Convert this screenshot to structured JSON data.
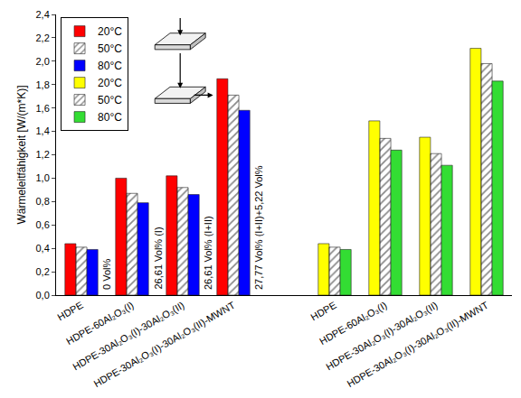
{
  "chart_data": {
    "type": "bar",
    "ylabel": "Wärmeleitfähigkeit [W/(m*K)]",
    "categories": [
      "HDPE",
      "HDPE-60Al₂O₃(I)",
      "HDPE-30Al₂O₃(I)-30Al₂O₃(II)",
      "HDPE-30Al₂O₃(I)-30Al₂O₃(II)-MWNT",
      null,
      "HDPE",
      "HDPE-60Al₂O₃(I)",
      "HDPE-30Al₂O₃(I)-30Al₂O₃(II)",
      "HDPE-30Al₂O₃(I)-30Al₂O₃(II)-MWNT"
    ],
    "series": [
      {
        "name": "20°C",
        "color": "#ff0000",
        "values": [
          0.44,
          1.0,
          1.02,
          1.85,
          null,
          null,
          null,
          null,
          null
        ]
      },
      {
        "name": "50°C",
        "color": "#e8102a",
        "marker": "hatched",
        "values": [
          0.41,
          0.87,
          0.92,
          1.71,
          null,
          null,
          null,
          null,
          null
        ]
      },
      {
        "name": "80°C",
        "color": "#0000ff",
        "values": [
          0.39,
          0.79,
          0.86,
          1.58,
          null,
          null,
          null,
          null,
          null
        ]
      },
      {
        "name": "20°C",
        "color": "#ffff00",
        "values": [
          null,
          null,
          null,
          null,
          null,
          0.44,
          1.49,
          1.35,
          2.11
        ]
      },
      {
        "name": "50°C",
        "color": "#eef03a",
        "marker": "hatched",
        "values": [
          null,
          null,
          null,
          null,
          null,
          0.41,
          1.34,
          1.21,
          1.98
        ]
      },
      {
        "name": "80°C",
        "color": "#33dd33",
        "values": [
          null,
          null,
          null,
          null,
          null,
          0.39,
          1.24,
          1.11,
          1.83
        ]
      }
    ],
    "ylim": [
      0,
      2.4
    ],
    "yticks": [
      {
        "value": 0,
        "label": "0,0"
      },
      {
        "value": 0.2,
        "label": "0,2"
      },
      {
        "value": 0.4,
        "label": "0,4"
      },
      {
        "value": 0.6,
        "label": "0,6"
      },
      {
        "value": 0.8,
        "label": "0,8"
      },
      {
        "value": 1.0,
        "label": "1,0"
      },
      {
        "value": 1.2,
        "label": "1,2"
      },
      {
        "value": 1.4,
        "label": "1,4"
      },
      {
        "value": 1.6,
        "label": "1,6"
      },
      {
        "value": 1.8,
        "label": "1,8"
      },
      {
        "value": 2.0,
        "label": "2,0"
      },
      {
        "value": 2.2,
        "label": "2,2"
      },
      {
        "value": 2.4,
        "label": "2,4"
      }
    ],
    "grid": false,
    "legend": "upper left",
    "annotations": [
      "0 Vol%",
      "26,61 Vol% (I)",
      "26,61 Vol% (I+II)",
      "27,77 Vol% (I+II)+5,22 Vol%"
    ]
  }
}
